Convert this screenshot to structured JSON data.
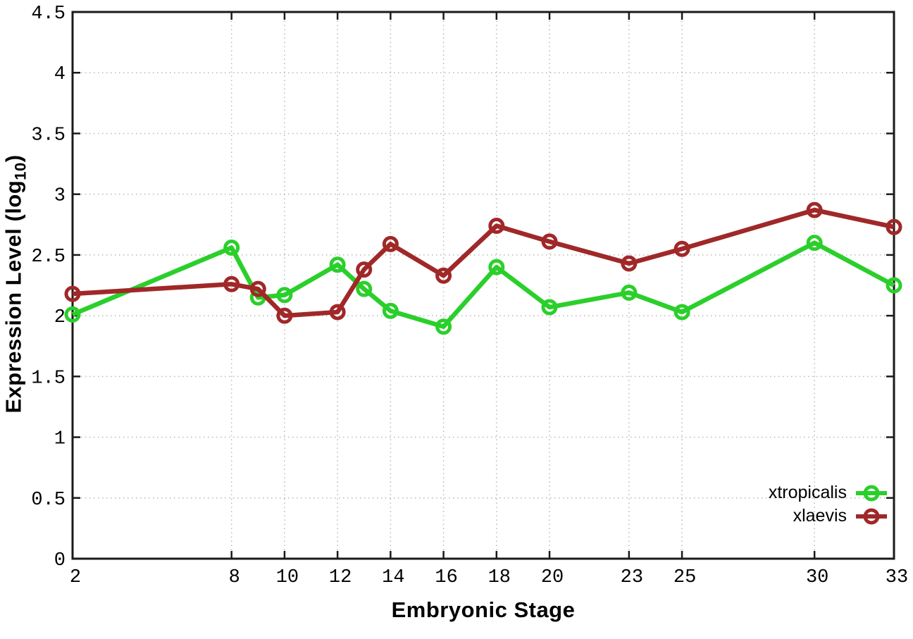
{
  "chart_data": {
    "type": "line",
    "title": "",
    "xlabel": "Embryonic Stage",
    "ylabel": {
      "main": "Expression Level (log",
      "sub": "10",
      "end": ")"
    },
    "xlim": [
      2,
      33
    ],
    "ylim": [
      0,
      4.5
    ],
    "xticks": [
      2,
      8,
      10,
      12,
      14,
      16,
      18,
      20,
      23,
      25,
      30,
      33
    ],
    "yticks": [
      0,
      0.5,
      1,
      1.5,
      2,
      2.5,
      3,
      3.5,
      4,
      4.5
    ],
    "grid": true,
    "legend_position": "inside-bottom-right",
    "x": [
      2,
      8,
      9,
      10,
      12,
      13,
      14,
      16,
      18,
      20,
      23,
      25,
      30,
      33
    ],
    "series": [
      {
        "name": "xtropicalis",
        "color": "#2bcf2b",
        "marker": "open-circle",
        "values": [
          2.01,
          2.56,
          2.15,
          2.17,
          2.42,
          2.22,
          2.04,
          1.91,
          2.4,
          2.07,
          2.19,
          2.03,
          2.6,
          2.25
        ]
      },
      {
        "name": "xlaevis",
        "color": "#a02828",
        "marker": "open-circle",
        "values": [
          2.18,
          2.26,
          2.22,
          2.0,
          2.03,
          2.38,
          2.59,
          2.33,
          2.74,
          2.61,
          2.43,
          2.55,
          2.87,
          2.73
        ]
      }
    ]
  },
  "colors": {
    "background": "#ffffff",
    "border": "#1a1a1a",
    "grid": "#b8b8b8",
    "tick_text": "#000000"
  }
}
